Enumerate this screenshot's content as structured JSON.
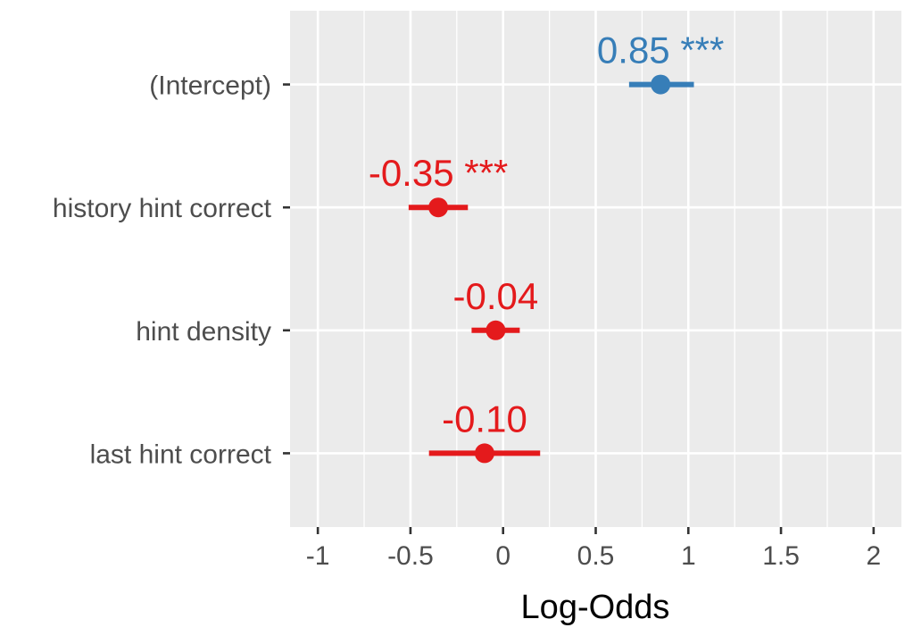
{
  "chart_data": {
    "type": "scatter",
    "subtype": "coefficient-plot-with-error-bars",
    "title": "",
    "xlabel": "Log-Odds",
    "ylabel": "",
    "xlim": [
      -1.15,
      2.15
    ],
    "x_ticks": [
      -1,
      -0.5,
      0,
      0.5,
      1,
      1.5,
      2
    ],
    "x_tick_labels": [
      "-1",
      "-0.5",
      "0",
      "0.5",
      "1",
      "1.5",
      "2"
    ],
    "grid": true,
    "legend": "none",
    "colors": {
      "positive": "#377EB8",
      "negative": "#E41A1C",
      "panel": "#EBEBEB",
      "grid": "#FFFFFF"
    },
    "points": [
      {
        "term": "(Intercept)",
        "estimate": 0.85,
        "lower": 0.68,
        "upper": 1.03,
        "label": "0.85 ***",
        "color": "#377EB8"
      },
      {
        "term": "history hint correct",
        "estimate": -0.35,
        "lower": -0.51,
        "upper": -0.19,
        "label": "-0.35 ***",
        "color": "#E41A1C"
      },
      {
        "term": "hint density",
        "estimate": -0.04,
        "lower": -0.17,
        "upper": 0.09,
        "label": "-0.04",
        "color": "#E41A1C"
      },
      {
        "term": "last hint correct",
        "estimate": -0.1,
        "lower": -0.4,
        "upper": 0.2,
        "label": "-0.10",
        "color": "#E41A1C"
      }
    ]
  }
}
